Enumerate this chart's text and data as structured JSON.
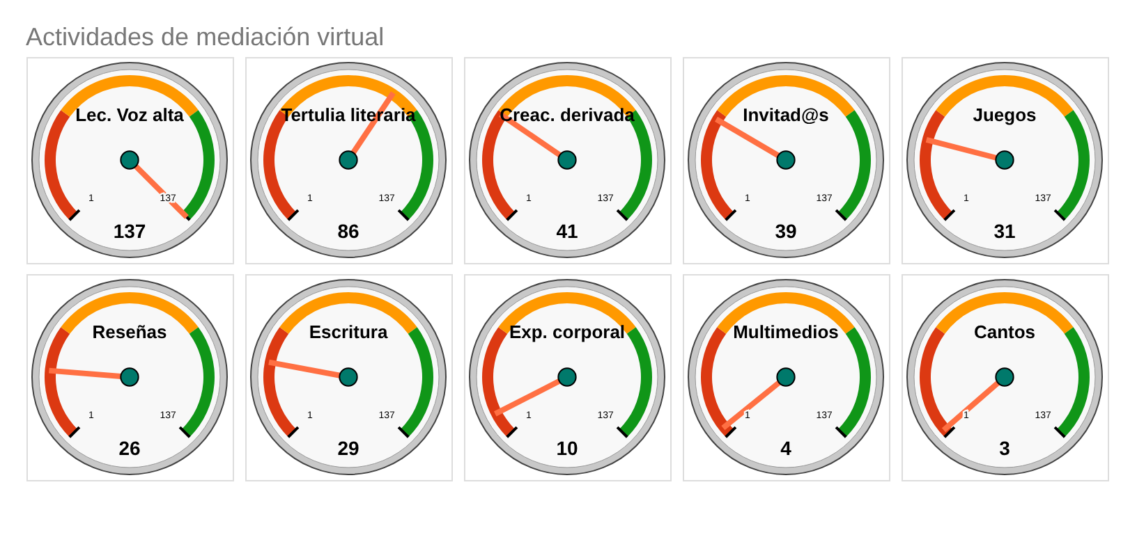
{
  "chart_data": [
    {
      "type": "other",
      "title": "Actividades de mediación virtual"
    },
    {
      "type": "other",
      "title": "Lec. Voz alta",
      "values": [
        137
      ],
      "data_labels": true,
      "annotations": [
        "1",
        "137"
      ]
    },
    {
      "type": "other",
      "title": "Tertulia literaria",
      "values": [
        86
      ],
      "data_labels": true,
      "annotations": [
        "1",
        "137"
      ]
    },
    {
      "type": "other",
      "title": "Creac. derivada",
      "values": [
        41
      ],
      "data_labels": true,
      "annotations": [
        "1",
        "137"
      ]
    },
    {
      "type": "other",
      "title": "Invitad@s",
      "values": [
        39
      ],
      "data_labels": true,
      "annotations": [
        "1",
        "137"
      ]
    },
    {
      "type": "other",
      "title": "Juegos",
      "values": [
        31
      ],
      "data_labels": true,
      "annotations": [
        "1",
        "137"
      ]
    },
    {
      "type": "other",
      "title": "Reseñas",
      "values": [
        26
      ],
      "data_labels": true,
      "annotations": [
        "1",
        "137"
      ]
    },
    {
      "type": "other",
      "title": "Escritura",
      "values": [
        29
      ],
      "data_labels": true,
      "annotations": [
        "1",
        "137"
      ]
    },
    {
      "type": "other",
      "title": "Exp. corporal",
      "values": [
        10
      ],
      "data_labels": true,
      "annotations": [
        "1",
        "137"
      ]
    },
    {
      "type": "other",
      "title": "Multimedios",
      "values": [
        4
      ],
      "data_labels": true,
      "annotations": [
        "1",
        "137"
      ]
    },
    {
      "type": "other",
      "title": "Cantos",
      "values": [
        3
      ],
      "data_labels": true,
      "annotations": [
        "1",
        "137"
      ]
    }
  ]
}
